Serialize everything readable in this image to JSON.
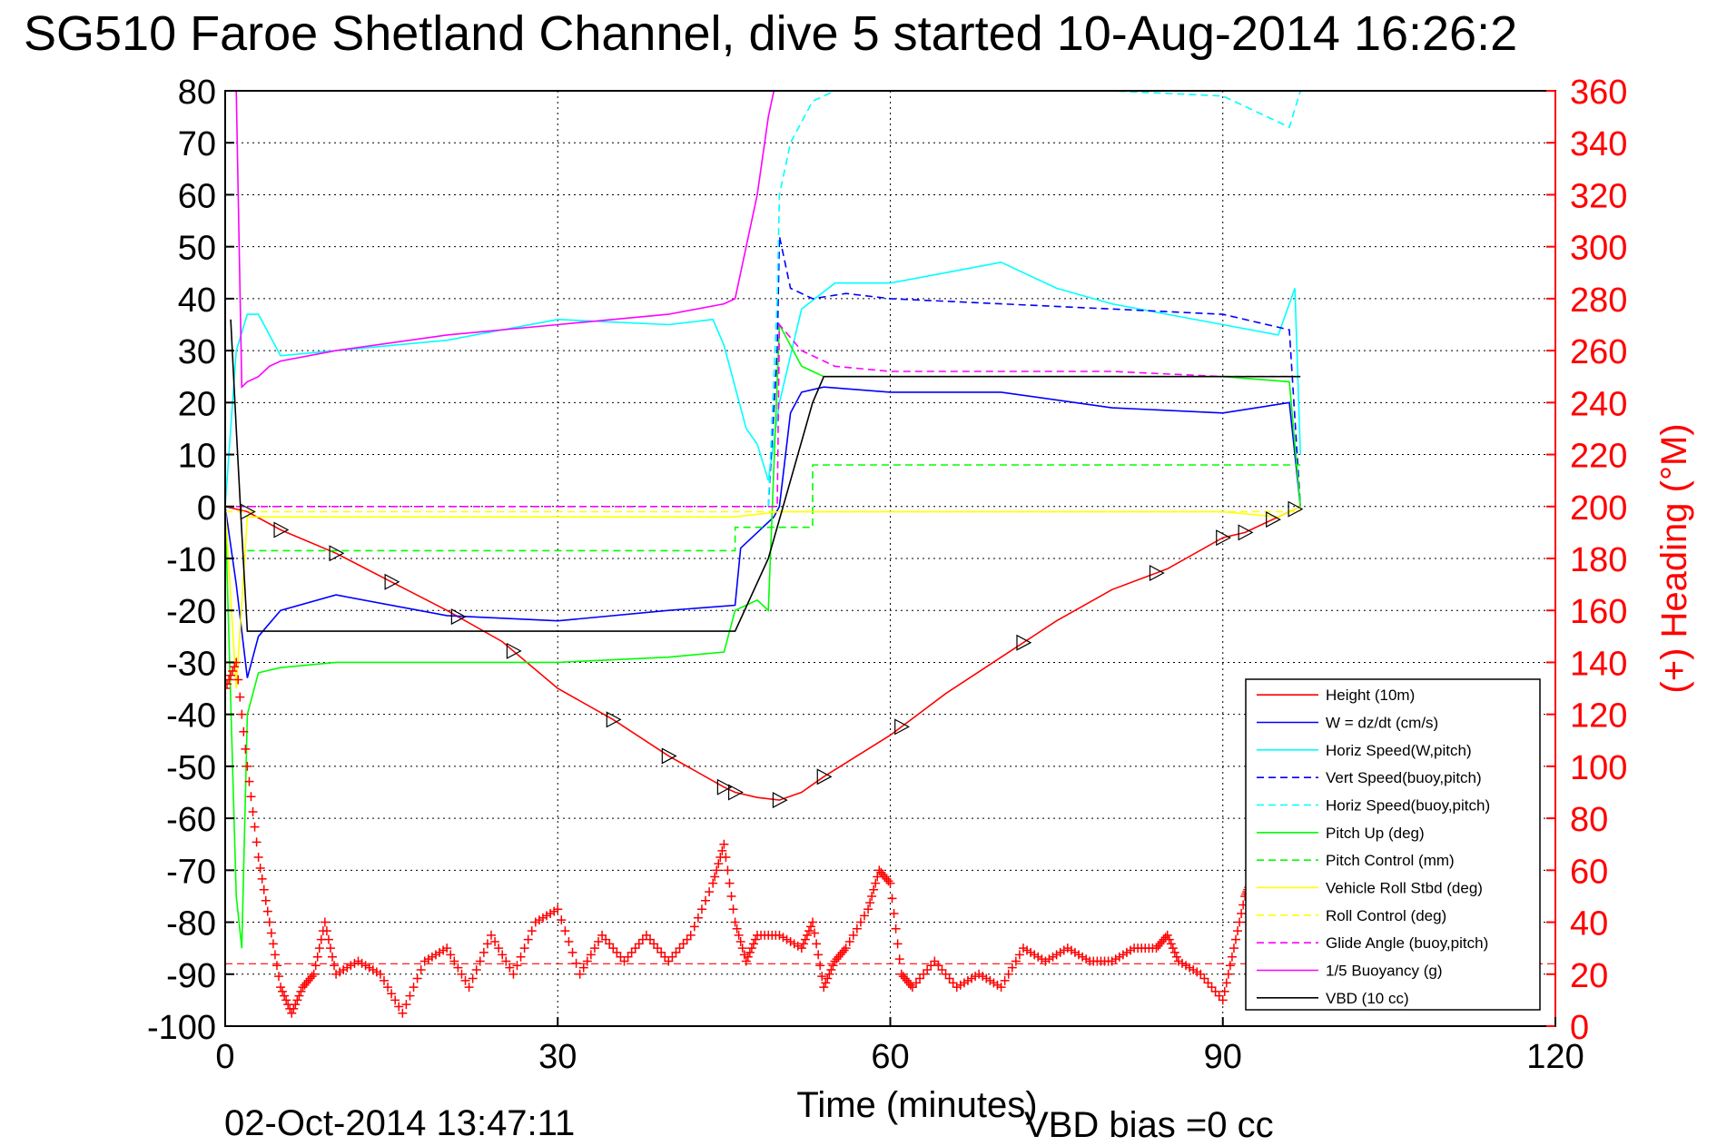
{
  "title": "SG510 Faroe Shetland Channel, dive 5 started 10-Aug-2014 16:26:2",
  "footer_left": "02-Oct-2014 13:47:11",
  "footer_right": "VBD bias =0 cc",
  "colors": {
    "height": "#ff0000",
    "w": "#0000ff",
    "horiz": "#00ffff",
    "pitch": "#00ff00",
    "roll": "#ffff00",
    "glide": "#ff00ff",
    "buoy": "#ff00ff",
    "vbd": "#000000",
    "heading": "#ff0000"
  },
  "chart_data": {
    "type": "line",
    "title": "SG510 Faroe Shetland Channel, dive 5 started 10-Aug-2014 16:26:2",
    "xlabel": "Time (minutes)",
    "ylabel": "",
    "y2label": "(+) Heading (°M)",
    "xlim": [
      0,
      120
    ],
    "ylim": [
      -100,
      80
    ],
    "y2lim": [
      0,
      360
    ],
    "xticks": [
      "0",
      "30",
      "60",
      "90",
      "120"
    ],
    "yticks": [
      "80",
      "70",
      "60",
      "50",
      "40",
      "30",
      "20",
      "10",
      "0",
      "-10",
      "-20",
      "-30",
      "-40",
      "-50",
      "-60",
      "-70",
      "-80",
      "-90",
      "-100"
    ],
    "y2ticks": [
      "360",
      "340",
      "320",
      "300",
      "280",
      "260",
      "240",
      "220",
      "200",
      "180",
      "160",
      "140",
      "120",
      "100",
      "80",
      "60",
      "40",
      "20",
      "0"
    ],
    "grid": true,
    "legend_position": "bottom-right",
    "legend": [
      {
        "label": "Height (10m)",
        "style": "solid",
        "color": "#ff0000"
      },
      {
        "label": "W = dz/dt (cm/s)",
        "style": "solid",
        "color": "#0000ff"
      },
      {
        "label": "Horiz Speed(W,pitch)",
        "style": "solid",
        "color": "#00ffff"
      },
      {
        "label": "Vert Speed(buoy,pitch)",
        "style": "dashed",
        "color": "#0000ff"
      },
      {
        "label": "Horiz Speed(buoy,pitch)",
        "style": "dashed",
        "color": "#00ffff"
      },
      {
        "label": "Pitch Up (deg)",
        "style": "solid",
        "color": "#00ff00"
      },
      {
        "label": "Pitch Control (mm)",
        "style": "dashed",
        "color": "#00ff00"
      },
      {
        "label": "Vehicle Roll Stbd (deg)",
        "style": "solid",
        "color": "#ffff00"
      },
      {
        "label": "Roll Control (deg)",
        "style": "dashed",
        "color": "#ffff00"
      },
      {
        "label": "Glide Angle (buoy,pitch)",
        "style": "dashed",
        "color": "#ff00ff"
      },
      {
        "label": "1/5 Buoyancy (g)",
        "style": "solid",
        "color": "#ff00ff"
      },
      {
        "label": "VBD (10 cc)",
        "style": "solid",
        "color": "#000000"
      }
    ],
    "series": [
      {
        "name": "Height (10m)",
        "axis": "left",
        "x": [
          0,
          2,
          5,
          10,
          15,
          20,
          25,
          30,
          35,
          40,
          45,
          46,
          48,
          50,
          52,
          54,
          60,
          65,
          70,
          75,
          80,
          85,
          90,
          92,
          94,
          96,
          97
        ],
        "y": [
          0,
          -1,
          -4.5,
          -9,
          -14.5,
          -20,
          -26,
          -35,
          -41,
          -48,
          -54,
          -55,
          -56,
          -56.5,
          -55,
          -52,
          -44,
          -36,
          -29,
          -22,
          -16,
          -12,
          -6,
          -5,
          -3,
          -1,
          0
        ]
      },
      {
        "name": "W = dz/dt (cm/s)",
        "axis": "left",
        "x": [
          0,
          1,
          2,
          3,
          5,
          10,
          20,
          30,
          40,
          46,
          46.5,
          48,
          49.5,
          50,
          51,
          52,
          54,
          60,
          70,
          80,
          90,
          96,
          97
        ],
        "y": [
          0,
          -15,
          -33,
          -25,
          -20,
          -17,
          -21,
          -22,
          -20,
          -19,
          -8,
          -5,
          -2,
          0,
          18,
          22,
          23,
          22,
          22,
          19,
          18,
          20,
          0
        ]
      },
      {
        "name": "Horiz Speed(W,pitch)",
        "axis": "left",
        "x": [
          0,
          1,
          2,
          3,
          5,
          10,
          20,
          30,
          40,
          44,
          45,
          47,
          48,
          49,
          50,
          52,
          55,
          60,
          65,
          70,
          75,
          80,
          85,
          90,
          95,
          96.5,
          97
        ],
        "y": [
          0,
          30,
          37,
          37,
          29,
          30,
          32,
          36,
          35,
          36,
          31,
          15,
          12,
          5,
          20,
          38,
          43,
          43,
          45,
          47,
          42,
          39,
          37,
          35,
          33,
          42,
          10
        ]
      },
      {
        "name": "Vert Speed(buoy,pitch)",
        "axis": "left",
        "x": [
          49,
          49.8,
          50,
          51,
          53,
          56,
          60,
          70,
          80,
          90,
          96,
          97
        ],
        "y": [
          0,
          30,
          52,
          42,
          40,
          41,
          40,
          39,
          38,
          37,
          34,
          0
        ]
      },
      {
        "name": "Horiz Speed(buoy,pitch)",
        "axis": "left",
        "x": [
          49,
          49.8,
          50,
          51,
          53,
          55,
          60,
          70,
          80,
          90,
          96,
          97
        ],
        "y": [
          0,
          40,
          60,
          70,
          78,
          80,
          80,
          80,
          80,
          79,
          73,
          80
        ]
      },
      {
        "name": "Pitch Up (deg)",
        "axis": "left",
        "x": [
          0,
          1,
          1.5,
          2,
          3,
          5,
          10,
          20,
          30,
          40,
          45,
          46,
          48,
          49,
          50,
          52,
          54,
          60,
          70,
          80,
          90,
          96,
          97
        ],
        "y": [
          0,
          -75,
          -85,
          -40,
          -32,
          -31,
          -30,
          -30,
          -30,
          -29,
          -28,
          -20,
          -18,
          -20,
          35,
          27,
          25,
          25,
          25,
          25,
          25,
          24,
          0
        ]
      },
      {
        "name": "Pitch Control (mm)",
        "axis": "left",
        "x": [
          2,
          46,
          46,
          53,
          53,
          97
        ],
        "y": [
          -8.5,
          -8.5,
          -4,
          -4,
          8,
          8
        ]
      },
      {
        "name": "Vehicle Roll Stbd (deg)",
        "axis": "left",
        "x": [
          0,
          1,
          2,
          5,
          10,
          20,
          30,
          40,
          46,
          50,
          60,
          70,
          80,
          90,
          95,
          97
        ],
        "y": [
          0,
          -35,
          -2,
          -2,
          -2,
          -2,
          -2,
          -2,
          -2,
          -1,
          -1,
          -1,
          -1,
          -1,
          -2,
          0
        ]
      },
      {
        "name": "Roll Control (deg)",
        "axis": "left",
        "x": [
          0,
          97
        ],
        "y": [
          -1,
          -1
        ]
      },
      {
        "name": "Glide Angle (buoy,pitch)",
        "axis": "left",
        "x": [
          0,
          46,
          49.8,
          50,
          52,
          55,
          60,
          70,
          80,
          90,
          96
        ],
        "y": [
          0,
          0,
          0,
          35,
          30,
          27,
          26,
          26,
          26,
          25,
          25
        ]
      },
      {
        "name": "1/5 Buoyancy (g)",
        "axis": "left",
        "x": [
          1,
          1.5,
          2,
          3,
          4,
          5,
          10,
          20,
          30,
          40,
          45,
          46,
          48,
          49,
          49.5
        ],
        "y": [
          80,
          23,
          24,
          25,
          27,
          28,
          30,
          33,
          35,
          37,
          39,
          40,
          60,
          75,
          80
        ]
      },
      {
        "name": "VBD (10 cc)",
        "axis": "left",
        "x": [
          0.5,
          1,
          1.5,
          2,
          46,
          49,
          51,
          53,
          54,
          97
        ],
        "y": [
          36,
          15,
          -5,
          -24,
          -24,
          -10,
          5,
          20,
          25,
          25
        ]
      },
      {
        "name": "(+) Heading (°M)",
        "axis": "right",
        "marker": "+",
        "x": [
          0,
          1,
          2,
          3,
          4,
          5,
          6,
          7,
          8,
          9,
          10,
          12,
          14,
          16,
          18,
          20,
          22,
          24,
          26,
          28,
          30,
          32,
          34,
          36,
          38,
          40,
          42,
          44,
          45,
          46,
          47,
          48,
          50,
          52,
          53,
          54,
          55,
          56,
          58,
          59,
          60,
          61,
          62,
          64,
          66,
          68,
          70,
          72,
          74,
          76,
          78,
          80,
          82,
          84,
          85,
          86,
          88,
          90,
          91,
          92,
          92.5
        ],
        "y": [
          130,
          140,
          100,
          65,
          40,
          15,
          5,
          15,
          20,
          40,
          20,
          25,
          20,
          5,
          25,
          30,
          15,
          35,
          20,
          40,
          45,
          20,
          35,
          25,
          35,
          25,
          35,
          55,
          70,
          40,
          25,
          35,
          35,
          30,
          40,
          15,
          25,
          30,
          45,
          60,
          55,
          20,
          15,
          25,
          15,
          20,
          15,
          30,
          25,
          30,
          25,
          25,
          30,
          30,
          35,
          25,
          20,
          10,
          30,
          50,
          55
        ]
      }
    ]
  }
}
